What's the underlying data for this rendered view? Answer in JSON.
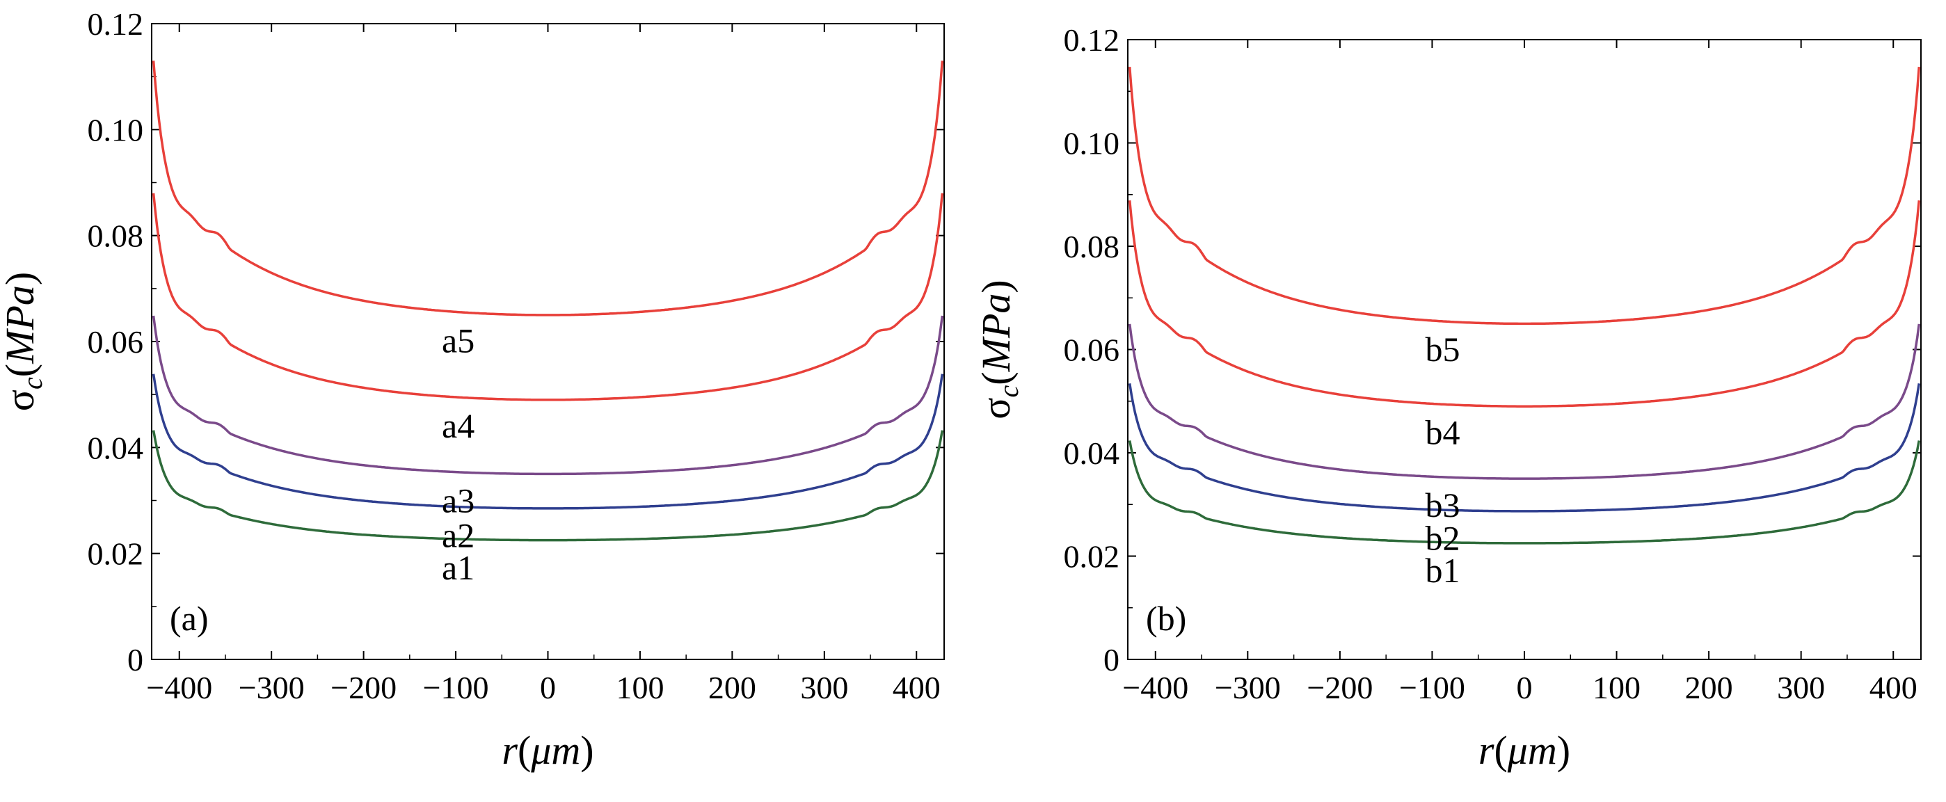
{
  "chart_data": [
    {
      "type": "line",
      "panel_label": "(a)",
      "xlabel": {
        "var": "r",
        "open": "(",
        "unit": "μm",
        "close": ")"
      },
      "ylabel": {
        "sym": "σ",
        "sub": "c",
        "open": "(",
        "unit": "MPa",
        "close": ")"
      },
      "xlim": [
        -430,
        430
      ],
      "ylim": [
        0,
        0.12
      ],
      "xticks": [
        -400,
        -300,
        -200,
        -100,
        0,
        100,
        200,
        300,
        400
      ],
      "xtick_labels": [
        "−400",
        "−300",
        "−200",
        "−100",
        "0",
        "100",
        "200",
        "300",
        "400"
      ],
      "yticks": [
        0,
        0.02,
        0.04,
        0.06,
        0.08,
        0.1,
        0.12
      ],
      "ytick_labels": [
        "0",
        "0.02",
        "0.04",
        "0.06",
        "0.08",
        "0.10",
        "0.12"
      ],
      "grid": false,
      "series": [
        {
          "name": "a1",
          "color": "#2e6b3a",
          "center": 0.0225,
          "at_350": 0.0275,
          "at_edge": 0.0455
        },
        {
          "name": "a2",
          "color": "#2f3f8f",
          "center": 0.0285,
          "at_350": 0.0355,
          "at_edge": 0.0565
        },
        {
          "name": "a3",
          "color": "#7a4a8a",
          "center": 0.035,
          "at_350": 0.043,
          "at_edge": 0.068
        },
        {
          "name": "a4",
          "color": "#e8403a",
          "center": 0.049,
          "at_350": 0.06,
          "at_edge": 0.092
        },
        {
          "name": "a5",
          "color": "#e8403a",
          "center": 0.065,
          "at_350": 0.078,
          "at_edge": 0.118
        }
      ]
    },
    {
      "type": "line",
      "panel_label": "(b)",
      "xlabel": {
        "var": "r",
        "open": "(",
        "unit": "μm",
        "close": ")"
      },
      "ylabel": {
        "sym": "σ",
        "sub": "c",
        "open": "(",
        "unit": "MPa",
        "close": ")"
      },
      "xlim": [
        -430,
        430
      ],
      "ylim": [
        0,
        0.12
      ],
      "xticks": [
        -400,
        -300,
        -200,
        -100,
        0,
        100,
        200,
        300,
        400
      ],
      "xtick_labels": [
        "−400",
        "−300",
        "−200",
        "−100",
        "0",
        "100",
        "200",
        "300",
        "400"
      ],
      "yticks": [
        0,
        0.02,
        0.04,
        0.06,
        0.08,
        0.1,
        0.12
      ],
      "ytick_labels": [
        "0",
        "0.02",
        "0.04",
        "0.06",
        "0.08",
        "0.10",
        "0.12"
      ],
      "grid": false,
      "series": [
        {
          "name": "b1",
          "color": "#2e6b3a",
          "center": 0.0225,
          "at_350": 0.0275,
          "at_edge": 0.0445
        },
        {
          "name": "b2",
          "color": "#2f3f8f",
          "center": 0.0287,
          "at_350": 0.0355,
          "at_edge": 0.056
        },
        {
          "name": "b3",
          "color": "#7a4a8a",
          "center": 0.035,
          "at_350": 0.0435,
          "at_edge": 0.068
        },
        {
          "name": "b4",
          "color": "#e8403a",
          "center": 0.049,
          "at_350": 0.06,
          "at_edge": 0.093
        },
        {
          "name": "b5",
          "color": "#e8403a",
          "center": 0.065,
          "at_350": 0.078,
          "at_edge": 0.12
        }
      ]
    }
  ]
}
